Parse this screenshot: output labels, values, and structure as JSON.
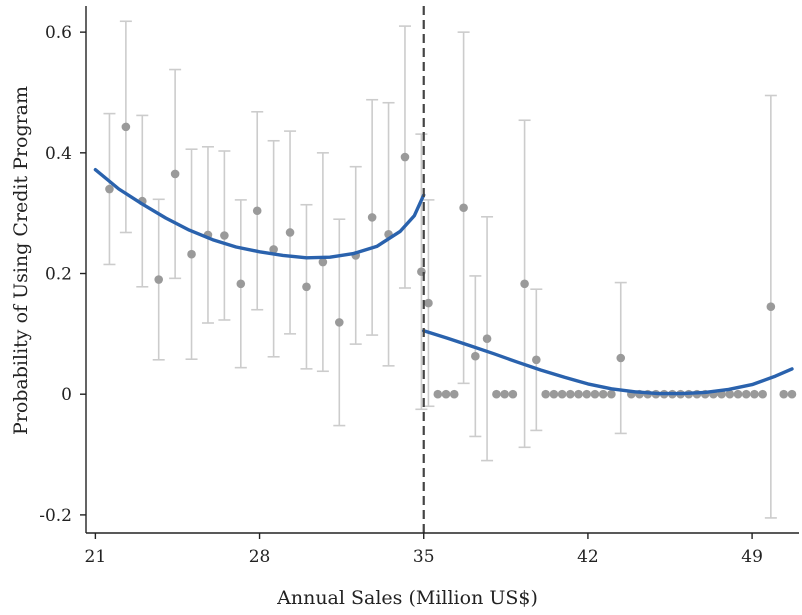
{
  "chart_data": {
    "type": "scatter",
    "title": "",
    "xlabel": "Annual Sales (Million US$)",
    "ylabel": "Probability of Using Credit Program",
    "xlim": [
      20.6,
      51.0
    ],
    "ylim": [
      -0.23,
      0.64
    ],
    "xticks": [
      21,
      28,
      35,
      42,
      49
    ],
    "yticks": [
      -0.2,
      0,
      0.2,
      0.4,
      0.6
    ],
    "ytick_labels": [
      "-0.2",
      "0",
      "0.2",
      "0.4",
      "0.6"
    ],
    "grid": false,
    "cutoff": 35,
    "colors": {
      "points": "#9a9a9a",
      "error_bars": "#cccccc",
      "fit": "#2a62ad",
      "cutoff": "#444444"
    },
    "points": [
      {
        "x": 21.6,
        "y": 0.34,
        "lo": 0.215,
        "hi": 0.465
      },
      {
        "x": 22.3,
        "y": 0.443,
        "lo": 0.268,
        "hi": 0.618
      },
      {
        "x": 23.0,
        "y": 0.32,
        "lo": 0.178,
        "hi": 0.462
      },
      {
        "x": 23.7,
        "y": 0.19,
        "lo": 0.057,
        "hi": 0.323
      },
      {
        "x": 24.4,
        "y": 0.365,
        "lo": 0.192,
        "hi": 0.538
      },
      {
        "x": 25.1,
        "y": 0.232,
        "lo": 0.058,
        "hi": 0.406
      },
      {
        "x": 25.8,
        "y": 0.264,
        "lo": 0.118,
        "hi": 0.41
      },
      {
        "x": 26.5,
        "y": 0.263,
        "lo": 0.123,
        "hi": 0.403
      },
      {
        "x": 27.2,
        "y": 0.183,
        "lo": 0.044,
        "hi": 0.322
      },
      {
        "x": 27.9,
        "y": 0.304,
        "lo": 0.14,
        "hi": 0.468
      },
      {
        "x": 28.6,
        "y": 0.24,
        "lo": 0.062,
        "hi": 0.42
      },
      {
        "x": 29.3,
        "y": 0.268,
        "lo": 0.1,
        "hi": 0.436
      },
      {
        "x": 30.0,
        "y": 0.178,
        "lo": 0.042,
        "hi": 0.314
      },
      {
        "x": 30.7,
        "y": 0.219,
        "lo": 0.038,
        "hi": 0.4
      },
      {
        "x": 31.4,
        "y": 0.119,
        "lo": -0.052,
        "hi": 0.29
      },
      {
        "x": 32.1,
        "y": 0.23,
        "lo": 0.083,
        "hi": 0.377
      },
      {
        "x": 32.8,
        "y": 0.293,
        "lo": 0.098,
        "hi": 0.488
      },
      {
        "x": 33.5,
        "y": 0.265,
        "lo": 0.047,
        "hi": 0.483
      },
      {
        "x": 34.2,
        "y": 0.393,
        "lo": 0.176,
        "hi": 0.61
      },
      {
        "x": 34.9,
        "y": 0.203,
        "lo": -0.025,
        "hi": 0.431
      },
      {
        "x": 35.2,
        "y": 0.151,
        "lo": -0.02,
        "hi": 0.322
      },
      {
        "x": 35.6,
        "y": 0.0
      },
      {
        "x": 35.95,
        "y": 0.0
      },
      {
        "x": 36.3,
        "y": 0.0
      },
      {
        "x": 36.7,
        "y": 0.309,
        "lo": 0.018,
        "hi": 0.6
      },
      {
        "x": 37.2,
        "y": 0.063,
        "lo": -0.07,
        "hi": 0.196
      },
      {
        "x": 37.7,
        "y": 0.092,
        "lo": -0.11,
        "hi": 0.294
      },
      {
        "x": 38.1,
        "y": 0.0
      },
      {
        "x": 38.45,
        "y": 0.0
      },
      {
        "x": 38.8,
        "y": 0.0
      },
      {
        "x": 39.3,
        "y": 0.183,
        "lo": -0.088,
        "hi": 0.454
      },
      {
        "x": 39.8,
        "y": 0.057,
        "lo": -0.06,
        "hi": 0.174
      },
      {
        "x": 40.2,
        "y": 0.0
      },
      {
        "x": 40.55,
        "y": 0.0
      },
      {
        "x": 40.9,
        "y": 0.0
      },
      {
        "x": 41.25,
        "y": 0.0
      },
      {
        "x": 41.6,
        "y": 0.0
      },
      {
        "x": 41.95,
        "y": 0.0
      },
      {
        "x": 42.3,
        "y": 0.0
      },
      {
        "x": 42.65,
        "y": 0.0
      },
      {
        "x": 43.0,
        "y": 0.0
      },
      {
        "x": 43.4,
        "y": 0.06,
        "lo": -0.065,
        "hi": 0.185
      },
      {
        "x": 43.85,
        "y": 0.0
      },
      {
        "x": 44.2,
        "y": 0.0
      },
      {
        "x": 44.55,
        "y": 0.0
      },
      {
        "x": 44.9,
        "y": 0.0
      },
      {
        "x": 45.25,
        "y": 0.0
      },
      {
        "x": 45.6,
        "y": 0.0
      },
      {
        "x": 45.95,
        "y": 0.0
      },
      {
        "x": 46.3,
        "y": 0.0
      },
      {
        "x": 46.65,
        "y": 0.0
      },
      {
        "x": 47.0,
        "y": 0.0
      },
      {
        "x": 47.35,
        "y": 0.0
      },
      {
        "x": 47.7,
        "y": 0.0
      },
      {
        "x": 48.05,
        "y": 0.0
      },
      {
        "x": 48.4,
        "y": 0.0
      },
      {
        "x": 48.75,
        "y": 0.0
      },
      {
        "x": 49.1,
        "y": 0.0
      },
      {
        "x": 49.45,
        "y": 0.0
      },
      {
        "x": 49.8,
        "y": 0.145,
        "lo": -0.205,
        "hi": 0.495
      },
      {
        "x": 50.35,
        "y": 0.0
      },
      {
        "x": 50.7,
        "y": 0.0
      }
    ],
    "fit_left": [
      {
        "x": 21.0,
        "y": 0.372
      },
      {
        "x": 22.0,
        "y": 0.34
      },
      {
        "x": 23.0,
        "y": 0.315
      },
      {
        "x": 24.0,
        "y": 0.292
      },
      {
        "x": 25.0,
        "y": 0.272
      },
      {
        "x": 26.0,
        "y": 0.256
      },
      {
        "x": 27.0,
        "y": 0.244
      },
      {
        "x": 28.0,
        "y": 0.236
      },
      {
        "x": 29.0,
        "y": 0.23
      },
      {
        "x": 30.0,
        "y": 0.226
      },
      {
        "x": 31.0,
        "y": 0.227
      },
      {
        "x": 32.0,
        "y": 0.233
      },
      {
        "x": 33.0,
        "y": 0.245
      },
      {
        "x": 34.0,
        "y": 0.27
      },
      {
        "x": 34.6,
        "y": 0.296
      },
      {
        "x": 35.0,
        "y": 0.33
      }
    ],
    "fit_right": [
      {
        "x": 35.0,
        "y": 0.105
      },
      {
        "x": 36.0,
        "y": 0.093
      },
      {
        "x": 37.0,
        "y": 0.08
      },
      {
        "x": 38.0,
        "y": 0.067
      },
      {
        "x": 39.0,
        "y": 0.053
      },
      {
        "x": 40.0,
        "y": 0.04
      },
      {
        "x": 41.0,
        "y": 0.028
      },
      {
        "x": 42.0,
        "y": 0.017
      },
      {
        "x": 43.0,
        "y": 0.009
      },
      {
        "x": 44.0,
        "y": 0.004
      },
      {
        "x": 45.0,
        "y": 0.001
      },
      {
        "x": 46.0,
        "y": 0.001
      },
      {
        "x": 47.0,
        "y": 0.003
      },
      {
        "x": 48.0,
        "y": 0.008
      },
      {
        "x": 49.0,
        "y": 0.016
      },
      {
        "x": 50.0,
        "y": 0.03
      },
      {
        "x": 50.7,
        "y": 0.042
      }
    ]
  }
}
